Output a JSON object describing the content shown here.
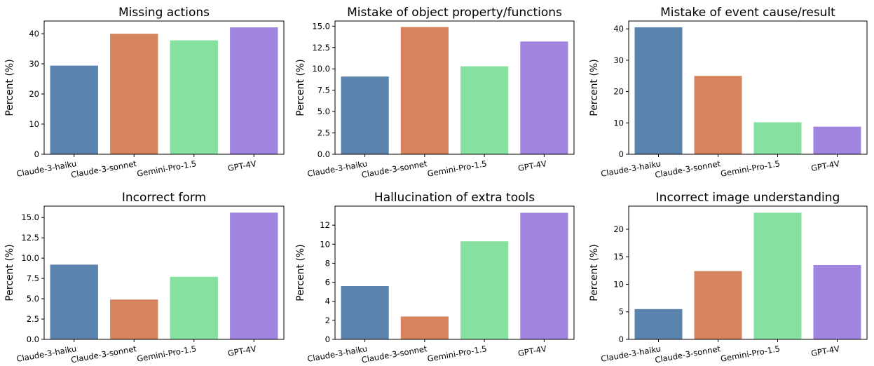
{
  "figure": {
    "background": "#ffffff"
  },
  "colors": {
    "Claude-3-haiku": "#5a84ad",
    "Claude-3-sonnet": "#d5845d",
    "Gemini-Pro-1.5": "#86e0a0",
    "GPT-4V": "#a084e0"
  },
  "chart_data": [
    {
      "type": "bar",
      "title": "Missing actions",
      "ylabel": "Percent (%)",
      "xlabel": "",
      "categories": [
        "Claude-3-haiku",
        "Claude-3-sonnet",
        "Gemini-Pro-1.5",
        "GPT-4V"
      ],
      "values": [
        29.4,
        40.0,
        37.8,
        42.1
      ],
      "ylim": [
        0,
        44.2
      ],
      "yticks": [
        0,
        10,
        20,
        30,
        40
      ],
      "ytick_labels": [
        "0",
        "10",
        "20",
        "30",
        "40"
      ]
    },
    {
      "type": "bar",
      "title": "Mistake of object property/functions",
      "ylabel": "Percent (%)",
      "xlabel": "",
      "categories": [
        "Claude-3-haiku",
        "Claude-3-sonnet",
        "Gemini-Pro-1.5",
        "GPT-4V"
      ],
      "values": [
        9.1,
        14.9,
        10.3,
        13.2
      ],
      "ylim": [
        0,
        15.6
      ],
      "yticks": [
        0,
        2.5,
        5,
        7.5,
        10,
        12.5,
        15
      ],
      "ytick_labels": [
        "0.0",
        "2.5",
        "5.0",
        "7.5",
        "10.0",
        "12.5",
        "15.0"
      ]
    },
    {
      "type": "bar",
      "title": "Mistake of event cause/result",
      "ylabel": "Percent (%)",
      "xlabel": "",
      "categories": [
        "Claude-3-haiku",
        "Claude-3-sonnet",
        "Gemini-Pro-1.5",
        "GPT-4V"
      ],
      "values": [
        40.5,
        25.0,
        10.2,
        8.8
      ],
      "ylim": [
        0,
        42.5
      ],
      "yticks": [
        0,
        10,
        20,
        30,
        40
      ],
      "ytick_labels": [
        "0",
        "10",
        "20",
        "30",
        "40"
      ]
    },
    {
      "type": "bar",
      "title": "Incorrect form",
      "ylabel": "Percent (%)",
      "xlabel": "",
      "categories": [
        "Claude-3-haiku",
        "Claude-3-sonnet",
        "Gemini-Pro-1.5",
        "GPT-4V"
      ],
      "values": [
        9.2,
        4.9,
        7.7,
        15.6
      ],
      "ylim": [
        0,
        16.4
      ],
      "yticks": [
        0,
        2.5,
        5,
        7.5,
        10,
        12.5,
        15
      ],
      "ytick_labels": [
        "0.0",
        "2.5",
        "5.0",
        "7.5",
        "10.0",
        "12.5",
        "15.0"
      ]
    },
    {
      "type": "bar",
      "title": "Hallucination of extra tools",
      "ylabel": "Percent (%)",
      "xlabel": "",
      "categories": [
        "Claude-3-haiku",
        "Claude-3-sonnet",
        "Gemini-Pro-1.5",
        "GPT-4V"
      ],
      "values": [
        5.6,
        2.4,
        10.3,
        13.3
      ],
      "ylim": [
        0,
        14.0
      ],
      "yticks": [
        0,
        2,
        4,
        6,
        8,
        10,
        12
      ],
      "ytick_labels": [
        "0",
        "2",
        "4",
        "6",
        "8",
        "10",
        "12"
      ]
    },
    {
      "type": "bar",
      "title": "Incorrect image understanding",
      "ylabel": "Percent (%)",
      "xlabel": "",
      "categories": [
        "Claude-3-haiku",
        "Claude-3-sonnet",
        "Gemini-Pro-1.5",
        "GPT-4V"
      ],
      "values": [
        5.5,
        12.4,
        23.0,
        13.5
      ],
      "ylim": [
        0,
        24.2
      ],
      "yticks": [
        0,
        5,
        10,
        15,
        20
      ],
      "ytick_labels": [
        "0",
        "5",
        "10",
        "15",
        "20"
      ]
    }
  ]
}
